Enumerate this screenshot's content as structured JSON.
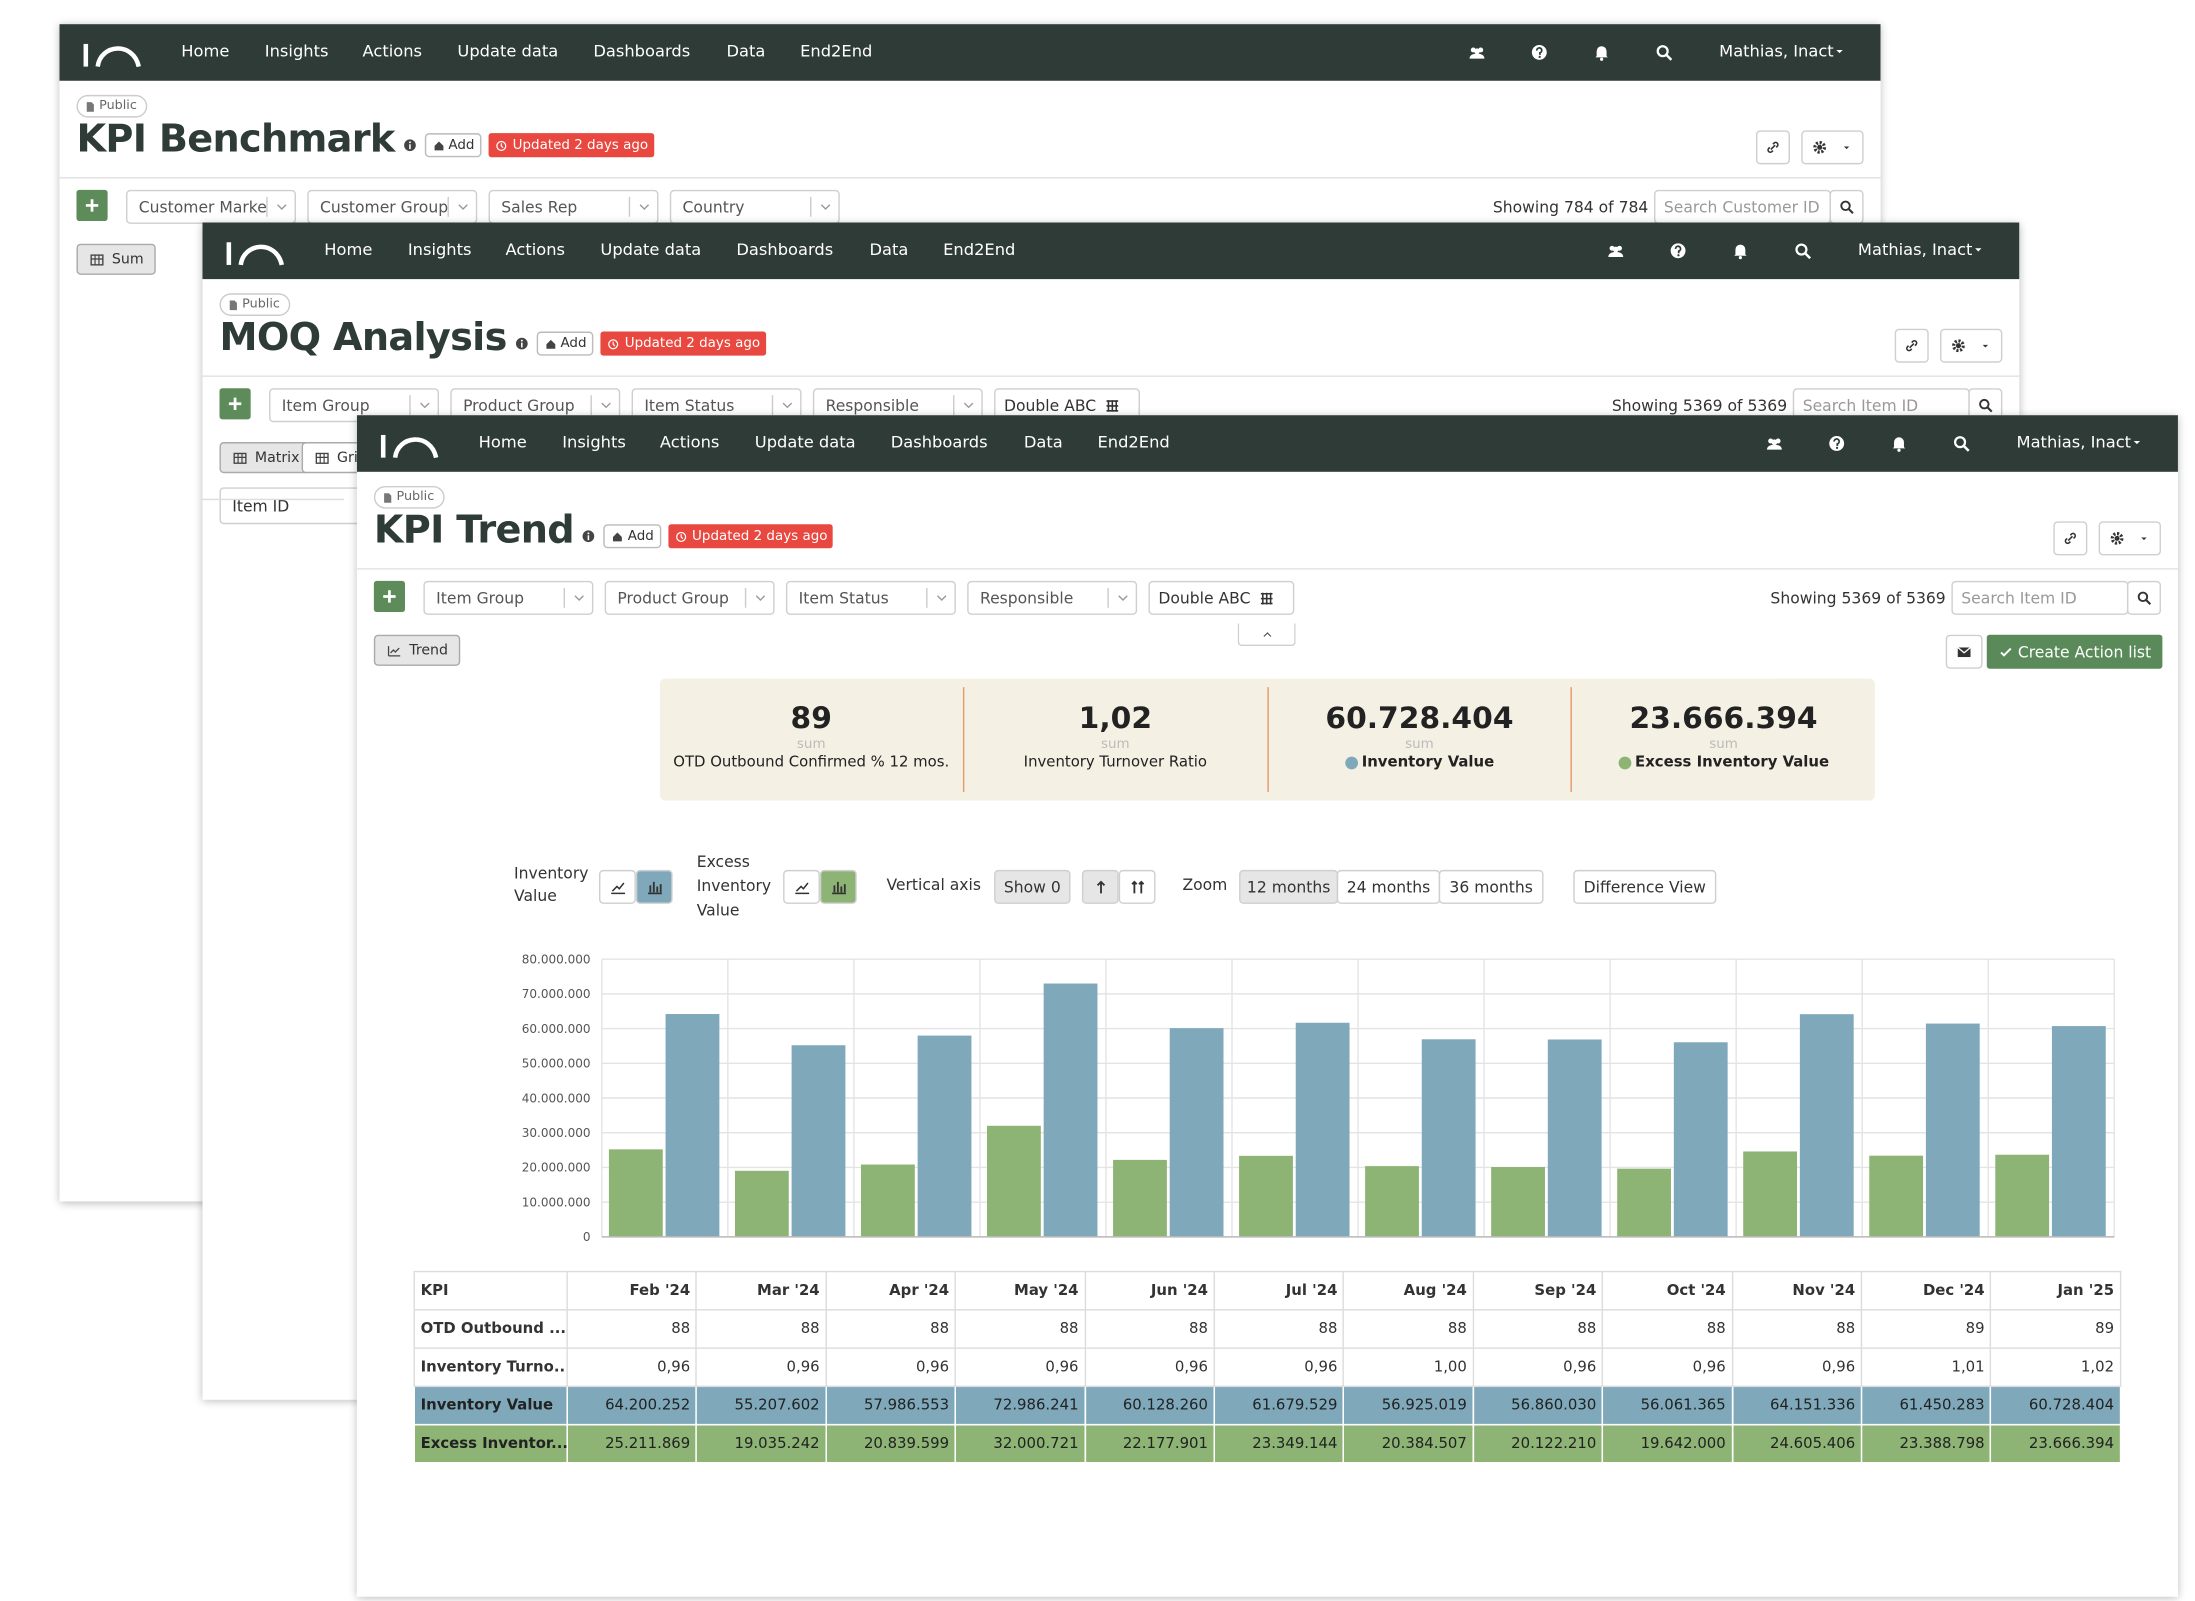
{
  "nav": {
    "items": [
      "Home",
      "Insights",
      "Actions",
      "Update data",
      "Dashboards",
      "Data",
      "End2End"
    ],
    "user": "Mathias, Inact"
  },
  "windows": [
    {
      "badge": "Public",
      "title": "KPI Benchmark",
      "add": "Add",
      "updated": "Updated 2 days ago",
      "filters": [
        "Customer Marke",
        "Customer Group",
        "Sales Rep",
        "Country"
      ],
      "showing": "Showing 784 of 784",
      "search": "Search Customer ID",
      "tabs": [
        "Sum"
      ]
    },
    {
      "badge": "Public",
      "title": "MOQ Analysis",
      "add": "Add",
      "updated": "Updated 2 days ago",
      "filters": [
        "Item Group",
        "Product Group",
        "Item Status",
        "Responsible"
      ],
      "toggle": "Double ABC",
      "showing": "Showing 5369 of 5369",
      "search": "Search Item ID",
      "tabs": [
        "Matrix",
        "Grid"
      ],
      "column": "Item ID"
    },
    {
      "badge": "Public",
      "title": "KPI Trend",
      "add": "Add",
      "updated": "Updated 2 days ago",
      "filters": [
        "Item Group",
        "Product Group",
        "Item Status",
        "Responsible"
      ],
      "toggle": "Double ABC",
      "showing": "Showing 5369 of 5369",
      "search": "Search Item ID",
      "tabs": [
        "Trend"
      ]
    }
  ],
  "action": "Create Action list",
  "kpis": [
    {
      "value": "89",
      "agg": "sum",
      "label": "OTD Outbound Confirmed % 12 mos."
    },
    {
      "value": "1,02",
      "agg": "sum",
      "label": "Inventory Turnover Ratio"
    },
    {
      "value": "60.728.404",
      "agg": "sum",
      "label": "Inventory Value"
    },
    {
      "value": "23.666.394",
      "agg": "sum",
      "label": "Excess Inventory Value"
    }
  ],
  "controls": {
    "vertical_axis": "Vertical axis",
    "show0": "Show 0",
    "zoom": "Zoom",
    "zoom_options": [
      "12 months",
      "24 months",
      "36 months"
    ],
    "difference": "Difference View"
  },
  "chart_data": {
    "type": "bar",
    "categories": [
      "Feb '24",
      "Mar '24",
      "Apr '24",
      "May '24",
      "Jun '24",
      "Jul '24",
      "Aug '24",
      "Sep '24",
      "Oct '24",
      "Nov '24",
      "Dec '24",
      "Jan '25"
    ],
    "series": [
      {
        "name": "Excess Inventory Value",
        "color": "#8db474",
        "values": [
          25211869,
          19035242,
          20839599,
          32000721,
          22177901,
          23349144,
          20384507,
          20122210,
          19642000,
          24605406,
          23388798,
          23666394
        ]
      },
      {
        "name": "Inventory Value",
        "color": "#7fa9bb",
        "values": [
          64200252,
          55207602,
          57986553,
          72986241,
          60128260,
          61679529,
          56925019,
          56860030,
          56061365,
          64151336,
          61450283,
          60728404
        ]
      }
    ],
    "ylim": [
      0,
      80000000
    ],
    "yticks": [
      0,
      {
        "value": 10000000,
        "label": "10.000.000"
      },
      {
        "value": 20000000,
        "label": "20.000.000"
      },
      {
        "value": 30000000,
        "label": "30.000.000"
      },
      {
        "value": 40000000,
        "label": "40.000.000"
      },
      {
        "value": 50000000,
        "label": "50.000.000"
      },
      {
        "value": 60000000,
        "label": "60.000.000"
      },
      {
        "value": 70000000,
        "label": "70.000.000"
      },
      {
        "value": 80000000,
        "label": "80.000.000"
      }
    ],
    "grid": true
  },
  "table": {
    "header": [
      "KPI"
    ],
    "rows": [
      [
        "OTD Outbound ...",
        "88",
        "88",
        "88",
        "88",
        "88",
        "88",
        "88",
        "88",
        "88",
        "88",
        "89",
        "89"
      ],
      [
        "Inventory Turno...",
        "0,96",
        "0,96",
        "0,96",
        "0,96",
        "0,96",
        "0,96",
        "1,00",
        "0,96",
        "0,96",
        "0,96",
        "1,01",
        "1,02"
      ],
      [
        "Inventory Value",
        "64.200.252",
        "55.207.602",
        "57.986.553",
        "72.986.241",
        "60.128.260",
        "61.679.529",
        "56.925.019",
        "56.860.030",
        "56.061.365",
        "64.151.336",
        "61.450.283",
        "60.728.404"
      ],
      [
        "Excess Inventor...",
        "25.211.869",
        "19.035.242",
        "20.839.599",
        "32.000.721",
        "22.177.901",
        "23.349.144",
        "20.384.507",
        "20.122.210",
        "19.642.000",
        "24.605.406",
        "23.388.798",
        "23.666.394"
      ]
    ]
  }
}
